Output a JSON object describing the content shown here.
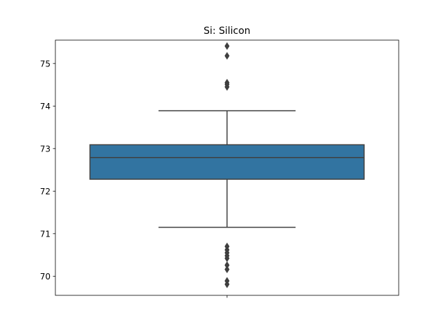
{
  "chart_data": {
    "type": "box",
    "title": "Si: Silicon",
    "xlabel": "",
    "ylabel": "",
    "ylim": [
      69.55,
      75.55
    ],
    "yticks": [
      70,
      71,
      72,
      73,
      74,
      75
    ],
    "xtick_labels": [
      ""
    ],
    "grid": false,
    "box": {
      "q1": 72.28,
      "median": 72.79,
      "q3": 73.09,
      "whisker_low": 71.15,
      "whisker_high": 73.89,
      "outliers": [
        75.41,
        75.18,
        74.55,
        74.51,
        74.45,
        70.7,
        70.62,
        70.55,
        70.48,
        70.42,
        70.26,
        70.16,
        69.89,
        69.81
      ],
      "color": "#3274a1",
      "line_color": "#3f3f3f"
    }
  }
}
